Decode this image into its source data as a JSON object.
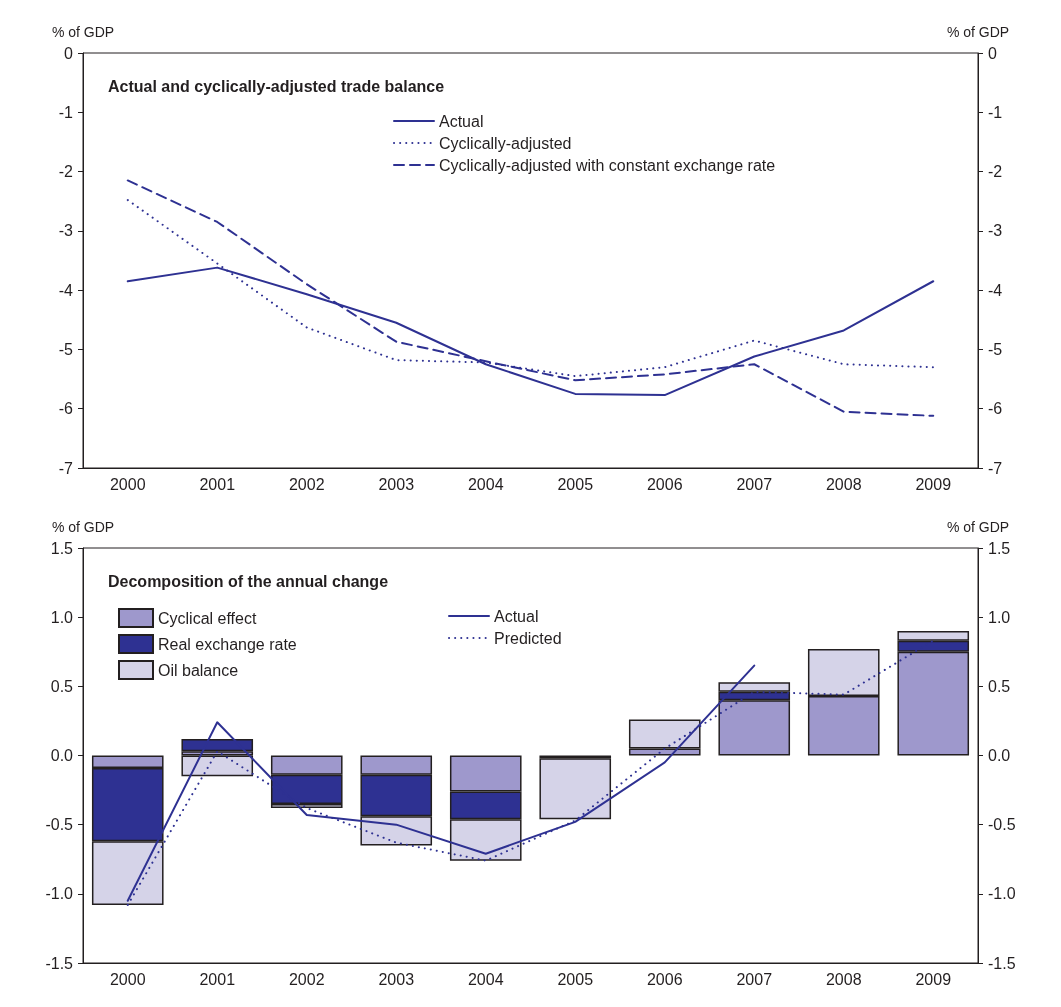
{
  "chart_data": [
    {
      "type": "line",
      "title": "Actual and cyclically-adjusted trade balance",
      "ylabel": "% of GDP",
      "y2label": "% of GDP",
      "categories": [
        "2000",
        "2001",
        "2002",
        "2003",
        "2004",
        "2005",
        "2006",
        "2007",
        "2008",
        "2009"
      ],
      "ylim": [
        -7,
        0
      ],
      "yticks": [
        -7,
        -6,
        -5,
        -4,
        -3,
        -2,
        -1,
        0
      ],
      "y2lim": [
        -7,
        0
      ],
      "y2ticks": [
        -7,
        -6,
        -5,
        -4,
        -3,
        -2,
        -1,
        0
      ],
      "grid": false,
      "legend": "top",
      "marker": "none",
      "series": [
        {
          "name": "Actual",
          "color": "#2e3192",
          "line_style": "solid",
          "values": [
            -3.85,
            -3.62,
            -4.07,
            -4.55,
            -5.25,
            -5.75,
            -5.77,
            -5.12,
            -4.68,
            -3.85
          ]
        },
        {
          "name": "Cyclically-adjusted",
          "color": "#2e3192",
          "line_style": "dotted",
          "values": [
            -2.48,
            -3.55,
            -4.63,
            -5.18,
            -5.22,
            -5.45,
            -5.3,
            -4.85,
            -5.25,
            -5.3
          ]
        },
        {
          "name": "Cyclically-adjusted with constant exchange rate",
          "color": "#2e3192",
          "line_style": "dashed",
          "values": [
            -2.15,
            -2.85,
            -3.9,
            -4.87,
            -5.2,
            -5.52,
            -5.42,
            -5.25,
            -6.05,
            -6.12
          ]
        }
      ]
    },
    {
      "type": "bar",
      "title": "Decomposition of the annual change",
      "ylabel": "% of GDP",
      "y2label": "% of GDP",
      "categories": [
        "2000",
        "2001",
        "2002",
        "2003",
        "2004",
        "2005",
        "2006",
        "2007",
        "2008",
        "2009"
      ],
      "ylim": [
        -1.5,
        1.5
      ],
      "yticks": [
        {
          "value": -1.5,
          "label": "-1.5"
        },
        {
          "value": -1,
          "label": "-1.0"
        },
        {
          "value": -0.5,
          "label": "-0.5"
        },
        {
          "value": 0,
          "label": "0.0"
        },
        {
          "value": 0.5,
          "label": "0.5"
        },
        {
          "value": 1,
          "label": "1.0"
        },
        {
          "value": 1.5,
          "label": "1.5"
        }
      ],
      "y2lim": [
        -1.5,
        1.5
      ],
      "y2ticks": [
        {
          "value": -1.5,
          "label": "-1.5"
        },
        {
          "value": -1,
          "label": "-1.0"
        },
        {
          "value": -0.5,
          "label": "-0.5"
        },
        {
          "value": 0,
          "label": "0.0"
        },
        {
          "value": 0.5,
          "label": "0.5"
        },
        {
          "value": 1,
          "label": "1.0"
        },
        {
          "value": 1.5,
          "label": "1.5"
        }
      ],
      "stacked": true,
      "grid": false,
      "legend": "top left",
      "marker": "none",
      "series": [
        {
          "name": "Cyclical effect",
          "color": "#9e98cc",
          "values": [
            -0.09,
            0.03,
            -0.14,
            -0.14,
            -0.26,
            -0.02,
            0.05,
            0.4,
            0.43,
            0.75
          ]
        },
        {
          "name": "Real exchange rate",
          "color": "#2e3192",
          "values": [
            -0.53,
            0.09,
            -0.21,
            -0.3,
            -0.2,
            null,
            null,
            0.06,
            null,
            0.08
          ]
        },
        {
          "name": "Oil balance",
          "color": "#d5d3e8",
          "values": [
            -0.46,
            -0.15,
            -0.03,
            -0.21,
            -0.3,
            -0.44,
            0.21,
            0.07,
            0.34,
            0.07
          ]
        },
        {
          "name": "Actual",
          "type": "line",
          "color": "#2e3192",
          "line_style": "solid",
          "values": [
            -1.05,
            0.24,
            -0.43,
            -0.5,
            -0.71,
            -0.48,
            -0.05,
            0.65,
            null,
            null
          ]
        },
        {
          "name": "Predicted",
          "type": "line",
          "color": "#2e3192",
          "line_style": "dotted",
          "values": [
            -1.08,
            0.03,
            -0.38,
            -0.63,
            -0.76,
            -0.47,
            0.05,
            0.46,
            0.44,
            0.83
          ]
        }
      ]
    }
  ]
}
